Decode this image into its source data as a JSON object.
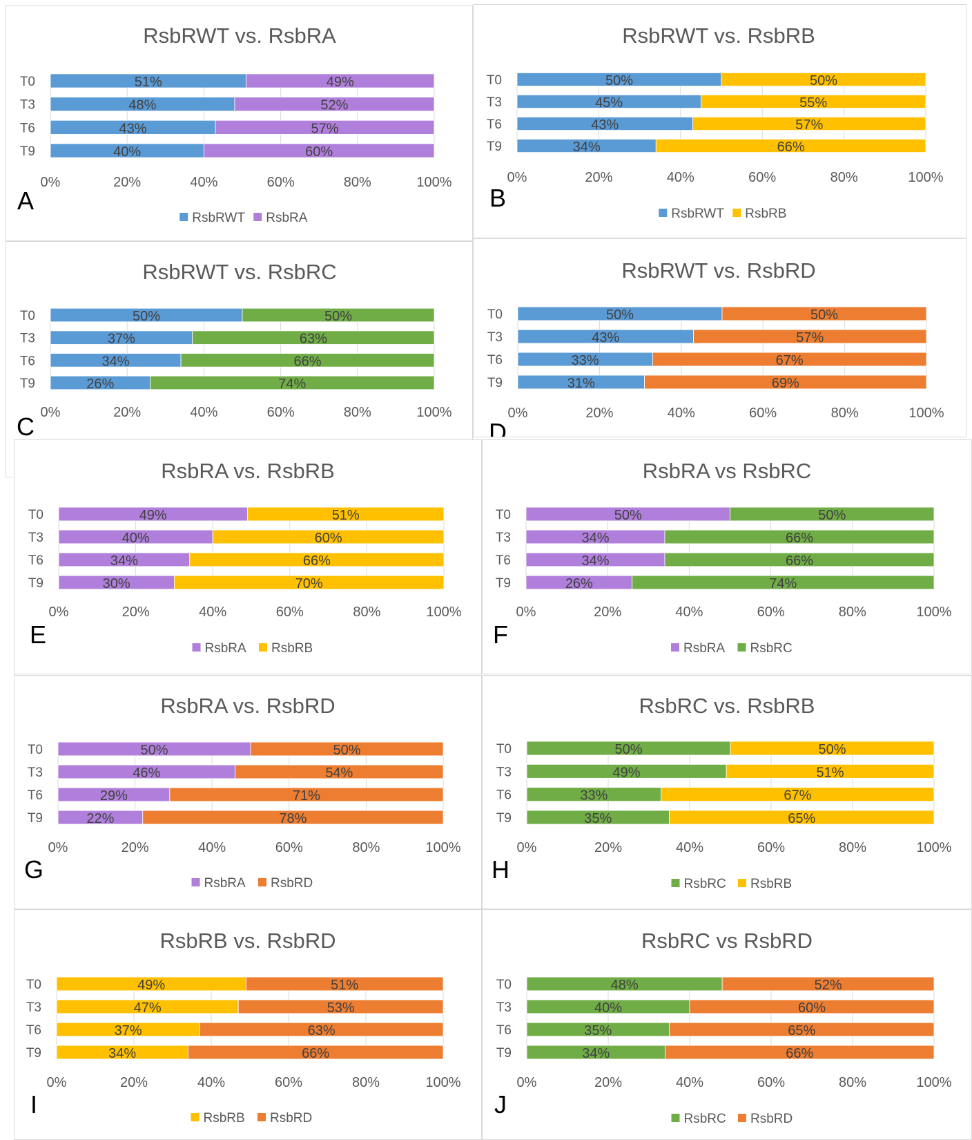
{
  "chart_data": [
    {
      "panel": "A",
      "type": "bar",
      "orientation": "horizontal",
      "stacked": "percent",
      "title": "RsbRWT vs. RsbRA",
      "categories": [
        "T0",
        "T3",
        "T6",
        "T9"
      ],
      "series": [
        {
          "name": "RsbRWT",
          "color": "#5b9bd5",
          "values": [
            51,
            48,
            43,
            40
          ],
          "labels": [
            "51%",
            "48%",
            "43%",
            "40%"
          ]
        },
        {
          "name": "RsbRA",
          "color": "#b07fdb",
          "values": [
            49,
            52,
            57,
            60
          ],
          "labels": [
            "49%",
            "52%",
            "57%",
            "60%"
          ]
        }
      ],
      "xticks": [
        "0%",
        "20%",
        "40%",
        "60%",
        "80%",
        "100%"
      ],
      "xlim": [
        0,
        100
      ],
      "legend": "bottom"
    },
    {
      "panel": "B",
      "type": "bar",
      "orientation": "horizontal",
      "stacked": "percent",
      "title": "RsbRWT vs. RsbRB",
      "categories": [
        "T0",
        "T3",
        "T6",
        "T9"
      ],
      "series": [
        {
          "name": "RsbRWT",
          "color": "#5b9bd5",
          "values": [
            50,
            45,
            43,
            34
          ],
          "labels": [
            "50%",
            "45%",
            "43%",
            "34%"
          ]
        },
        {
          "name": "RsbRB",
          "color": "#ffc000",
          "values": [
            50,
            55,
            57,
            66
          ],
          "labels": [
            "50%",
            "55%",
            "57%",
            "66%"
          ]
        }
      ],
      "xticks": [
        "0%",
        "20%",
        "40%",
        "60%",
        "80%",
        "100%"
      ],
      "xlim": [
        0,
        100
      ],
      "legend": "bottom"
    },
    {
      "panel": "C",
      "type": "bar",
      "orientation": "horizontal",
      "stacked": "percent",
      "title": "RsbRWT vs. RsbRC",
      "categories": [
        "T0",
        "T3",
        "T6",
        "T9"
      ],
      "series": [
        {
          "name": "RsbRWT",
          "color": "#5b9bd5",
          "values": [
            50,
            37,
            34,
            26
          ],
          "labels": [
            "50%",
            "37%",
            "34%",
            "26%"
          ]
        },
        {
          "name": "RsbRC",
          "color": "#70ad47",
          "values": [
            50,
            63,
            66,
            74
          ],
          "labels": [
            "50%",
            "63%",
            "66%",
            "74%"
          ]
        }
      ],
      "xticks": [
        "0%",
        "20%",
        "40%",
        "60%",
        "80%",
        "100%"
      ],
      "xlim": [
        0,
        100
      ],
      "legend": "none"
    },
    {
      "panel": "D",
      "type": "bar",
      "orientation": "horizontal",
      "stacked": "percent",
      "title": "RsbRWT vs. RsbRD",
      "categories": [
        "T0",
        "T3",
        "T6",
        "T9"
      ],
      "series": [
        {
          "name": "RsbRWT",
          "color": "#5b9bd5",
          "values": [
            50,
            43,
            33,
            31
          ],
          "labels": [
            "50%",
            "43%",
            "33%",
            "31%"
          ]
        },
        {
          "name": "RsbRD",
          "color": "#ed7d31",
          "values": [
            50,
            57,
            67,
            69
          ],
          "labels": [
            "50%",
            "57%",
            "67%",
            "69%"
          ]
        }
      ],
      "xticks": [
        "0%",
        "20%",
        "40%",
        "60%",
        "80%",
        "100%"
      ],
      "xlim": [
        0,
        100
      ],
      "legend": "none"
    },
    {
      "panel": "E",
      "type": "bar",
      "orientation": "horizontal",
      "stacked": "percent",
      "title": "RsbRA vs. RsbRB",
      "categories": [
        "T0",
        "T3",
        "T6",
        "T9"
      ],
      "series": [
        {
          "name": "RsbRA",
          "color": "#b07fdb",
          "values": [
            49,
            40,
            34,
            30
          ],
          "labels": [
            "49%",
            "40%",
            "34%",
            "30%"
          ]
        },
        {
          "name": "RsbRB",
          "color": "#ffc000",
          "values": [
            51,
            60,
            66,
            70
          ],
          "labels": [
            "51%",
            "60%",
            "66%",
            "70%"
          ]
        }
      ],
      "xticks": [
        "0%",
        "20%",
        "40%",
        "60%",
        "80%",
        "100%"
      ],
      "xlim": [
        0,
        100
      ],
      "legend": "bottom"
    },
    {
      "panel": "F",
      "type": "bar",
      "orientation": "horizontal",
      "stacked": "percent",
      "title": "RsbRA vs RsbRC",
      "categories": [
        "T0",
        "T3",
        "T6",
        "T9"
      ],
      "series": [
        {
          "name": "RsbRA",
          "color": "#b07fdb",
          "values": [
            50,
            34,
            34,
            26
          ],
          "labels": [
            "50%",
            "34%",
            "34%",
            "26%"
          ]
        },
        {
          "name": "RsbRC",
          "color": "#70ad47",
          "values": [
            50,
            66,
            66,
            74
          ],
          "labels": [
            "50%",
            "66%",
            "66%",
            "74%"
          ]
        }
      ],
      "xticks": [
        "0%",
        "20%",
        "40%",
        "60%",
        "80%",
        "100%"
      ],
      "xlim": [
        0,
        100
      ],
      "legend": "bottom"
    },
    {
      "panel": "G",
      "type": "bar",
      "orientation": "horizontal",
      "stacked": "percent",
      "title": "RsbRA vs. RsbRD",
      "categories": [
        "T0",
        "T3",
        "T6",
        "T9"
      ],
      "series": [
        {
          "name": "RsbRA",
          "color": "#b07fdb",
          "values": [
            50,
            46,
            29,
            22
          ],
          "labels": [
            "50%",
            "46%",
            "29%",
            "22%"
          ]
        },
        {
          "name": "RsbRD",
          "color": "#ed7d31",
          "values": [
            50,
            54,
            71,
            78
          ],
          "labels": [
            "50%",
            "54%",
            "71%",
            "78%"
          ]
        }
      ],
      "xticks": [
        "0%",
        "20%",
        "40%",
        "60%",
        "80%",
        "100%"
      ],
      "xlim": [
        0,
        100
      ],
      "legend": "bottom"
    },
    {
      "panel": "H",
      "type": "bar",
      "orientation": "horizontal",
      "stacked": "percent",
      "title": "RsbRC vs. RsbRB",
      "categories": [
        "T0",
        "T3",
        "T6",
        "T9"
      ],
      "series": [
        {
          "name": "RsbRC",
          "color": "#70ad47",
          "values": [
            50,
            49,
            33,
            35
          ],
          "labels": [
            "50%",
            "49%",
            "33%",
            "35%"
          ]
        },
        {
          "name": "RsbRB",
          "color": "#ffc000",
          "values": [
            50,
            51,
            67,
            65
          ],
          "labels": [
            "50%",
            "51%",
            "67%",
            "65%"
          ]
        }
      ],
      "xticks": [
        "0%",
        "20%",
        "40%",
        "60%",
        "80%",
        "100%"
      ],
      "xlim": [
        0,
        100
      ],
      "legend": "bottom"
    },
    {
      "panel": "I",
      "type": "bar",
      "orientation": "horizontal",
      "stacked": "percent",
      "title": "RsbRB vs. RsbRD",
      "categories": [
        "T0",
        "T3",
        "T6",
        "T9"
      ],
      "series": [
        {
          "name": "RsbRB",
          "color": "#ffc000",
          "values": [
            49,
            47,
            37,
            34
          ],
          "labels": [
            "49%",
            "47%",
            "37%",
            "34%"
          ]
        },
        {
          "name": "RsbRD",
          "color": "#ed7d31",
          "values": [
            51,
            53,
            63,
            66
          ],
          "labels": [
            "51%",
            "53%",
            "63%",
            "66%"
          ]
        }
      ],
      "xticks": [
        "0%",
        "20%",
        "40%",
        "60%",
        "80%",
        "100%"
      ],
      "xlim": [
        0,
        100
      ],
      "legend": "bottom"
    },
    {
      "panel": "J",
      "type": "bar",
      "orientation": "horizontal",
      "stacked": "percent",
      "title": "RsbRC vs RsbRD",
      "categories": [
        "T0",
        "T3",
        "T6",
        "T9"
      ],
      "series": [
        {
          "name": "RsbRC",
          "color": "#70ad47",
          "values": [
            48,
            40,
            35,
            34
          ],
          "labels": [
            "48%",
            "40%",
            "35%",
            "34%"
          ]
        },
        {
          "name": "RsbRD",
          "color": "#ed7d31",
          "values": [
            52,
            60,
            65,
            66
          ],
          "labels": [
            "52%",
            "60%",
            "65%",
            "66%"
          ]
        }
      ],
      "xticks": [
        "0%",
        "20%",
        "40%",
        "60%",
        "80%",
        "100%"
      ],
      "xlim": [
        0,
        100
      ],
      "legend": "bottom"
    }
  ]
}
